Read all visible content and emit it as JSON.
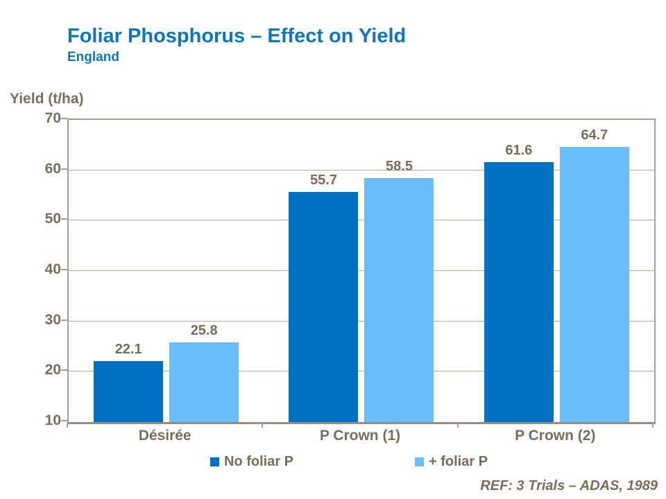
{
  "header": {
    "title": "Foliar Phosphorus – Effect on Yield",
    "subtitle": "England"
  },
  "chart_data": {
    "type": "bar",
    "title": "Foliar Phosphorus – Effect on Yield",
    "ylabel": "Yield (t/ha)",
    "xlabel": "",
    "ylim": [
      10,
      70
    ],
    "yticks": [
      70,
      60,
      50,
      40,
      30,
      20,
      10
    ],
    "grid": true,
    "data_labels": true,
    "legend_position": "bottom",
    "categories": [
      "Désirée",
      "P Crown (1)",
      "P Crown (2)"
    ],
    "series": [
      {
        "name": "No foliar P",
        "color": "#0070c0",
        "values": [
          22.1,
          55.7,
          61.6
        ]
      },
      {
        "name": "+ foliar P",
        "color": "#6cbefa",
        "values": [
          25.8,
          58.5,
          64.7
        ]
      }
    ]
  },
  "footer": {
    "reference": "REF: 3 Trials – ADAS, 1989"
  },
  "colors": {
    "title_blue": "#0e76bd",
    "text_brown": "#7c6c5a",
    "gridline": "#b5aa9c",
    "axis": "#a89c8e",
    "baseline": "#9a8c7c",
    "background": "#ffffff"
  }
}
